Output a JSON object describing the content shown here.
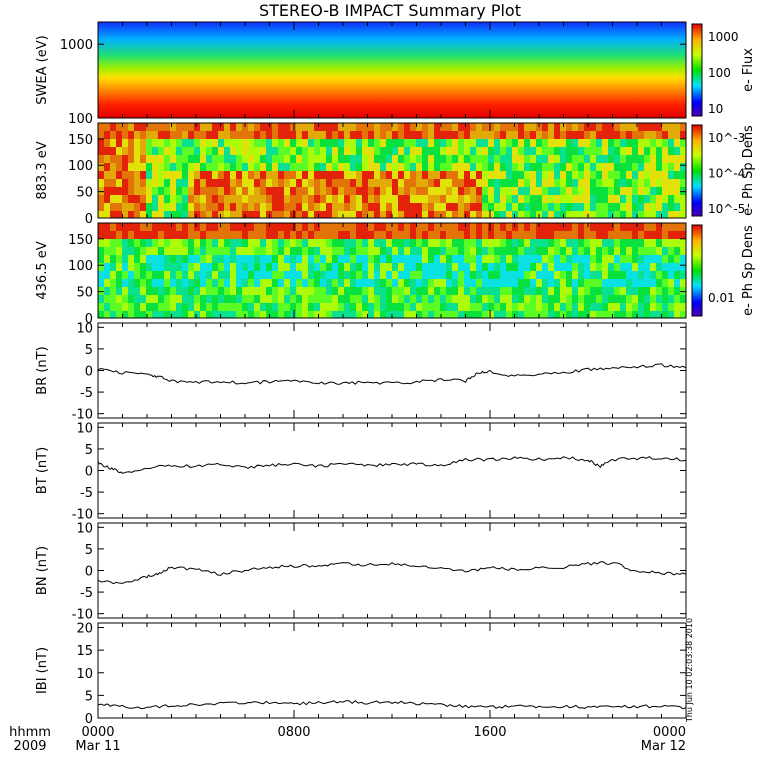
{
  "title": "STEREO-B IMPACT Summary Plot",
  "timestamp": "Thu Jun 10 02:03:38 2010",
  "x_axis": {
    "row1_labels": [
      "hhmm",
      "0000",
      "0800",
      "1600",
      "0000"
    ],
    "row2_labels": [
      "2009",
      "Mar 11",
      "Mar 12"
    ]
  },
  "chart_data": [
    {
      "type": "heatmap",
      "id": "swea",
      "ylabel": "SWEA (eV)",
      "yscale": "log",
      "ylim": [
        100,
        2000
      ],
      "yticks": [
        "1000",
        "100"
      ],
      "colorbar": {
        "label": "e- Flux",
        "scale": "log",
        "ticks": [
          "1000",
          "100",
          "10"
        ]
      }
    },
    {
      "type": "heatmap",
      "id": "pad883",
      "ylabel": "883.3 eV",
      "ylim": [
        0,
        180
      ],
      "yticks": [
        "150",
        "100",
        "50",
        "0"
      ],
      "colorbar": {
        "label": "e- Ph Sp Dens",
        "scale": "log",
        "ticks": [
          "10^-3",
          "10^-4",
          "10^-5"
        ]
      }
    },
    {
      "type": "heatmap",
      "id": "pad436",
      "ylabel": "436.5 eV",
      "ylim": [
        0,
        180
      ],
      "yticks": [
        "150",
        "100",
        "50",
        "0"
      ],
      "colorbar": {
        "label": "e- Ph Sp Dens",
        "scale": "log",
        "ticks": [
          "0.01"
        ]
      }
    },
    {
      "type": "line",
      "id": "br",
      "ylabel": "BR (nT)",
      "ylim": [
        -11,
        11
      ],
      "yticks": [
        "10",
        "5",
        "0",
        "-5",
        "-10"
      ],
      "x": [
        0,
        1,
        2,
        2.5,
        3,
        4,
        5,
        6,
        7,
        8,
        9,
        10,
        11,
        12,
        13,
        14,
        15,
        15.5,
        16,
        17,
        18,
        19,
        20,
        21,
        22,
        23,
        24
      ],
      "values": [
        0.5,
        -0.5,
        -0.8,
        -1.5,
        -2.5,
        -2.8,
        -2.5,
        -3,
        -2.6,
        -2.4,
        -2.8,
        -3,
        -2.7,
        -3,
        -2.6,
        -2.2,
        -2.4,
        -0.5,
        -0.2,
        -1.3,
        -0.8,
        -0.5,
        0.2,
        0.5,
        0.8,
        1.2,
        0.6
      ]
    },
    {
      "type": "line",
      "id": "bt",
      "ylabel": "BT (nT)",
      "ylim": [
        -11,
        11
      ],
      "yticks": [
        "10",
        "5",
        "0",
        "-5",
        "-10"
      ],
      "x": [
        0,
        0.5,
        1,
        2,
        3,
        4,
        5,
        6,
        7,
        8,
        9,
        10,
        11,
        12,
        13,
        14,
        15,
        16,
        17,
        18,
        19,
        20,
        20.5,
        21,
        22,
        23,
        24
      ],
      "values": [
        1.8,
        0.5,
        -0.5,
        0.5,
        1.2,
        1.0,
        1.5,
        0.6,
        1.2,
        1.5,
        1.0,
        1.6,
        1.2,
        1.3,
        1.6,
        1.0,
        2.6,
        2.5,
        2.8,
        2.6,
        3.0,
        2.4,
        1.0,
        2.5,
        2.8,
        3.0,
        2.4
      ]
    },
    {
      "type": "line",
      "id": "bn",
      "ylabel": "BN (nT)",
      "ylim": [
        -11,
        11
      ],
      "yticks": [
        "10",
        "5",
        "0",
        "-5",
        "-10"
      ],
      "x": [
        0,
        1,
        2,
        2.5,
        3,
        4,
        5,
        6,
        7,
        8,
        9,
        10,
        11,
        12,
        13,
        14,
        15,
        16,
        17,
        18,
        19,
        20,
        21,
        22,
        23,
        24
      ],
      "values": [
        -2.5,
        -3.0,
        -1.5,
        -0.5,
        0.8,
        0.2,
        -0.8,
        0.0,
        0.8,
        1.0,
        1.2,
        1.5,
        1.3,
        1.6,
        1.0,
        0.4,
        -0.2,
        0.6,
        0.2,
        0.5,
        0.8,
        1.5,
        1.8,
        -0.2,
        -0.5,
        -0.9
      ]
    },
    {
      "type": "line",
      "id": "bmag",
      "ylabel": "IBI (nT)",
      "ylim": [
        0,
        21
      ],
      "yticks": [
        "20",
        "15",
        "10",
        "5",
        "0"
      ],
      "x": [
        0,
        1,
        2,
        3,
        4,
        5,
        6,
        7,
        8,
        9,
        10,
        11,
        12,
        13,
        14,
        15,
        16,
        17,
        18,
        19,
        20,
        21,
        22,
        23,
        24
      ],
      "values": [
        3.0,
        2.6,
        2.2,
        2.8,
        3.0,
        3.3,
        3.2,
        3.5,
        3.1,
        3.4,
        3.6,
        3.4,
        3.5,
        3.2,
        3.0,
        2.6,
        2.4,
        2.7,
        2.5,
        2.6,
        2.4,
        2.6,
        2.5,
        2.7,
        2.3
      ]
    }
  ]
}
